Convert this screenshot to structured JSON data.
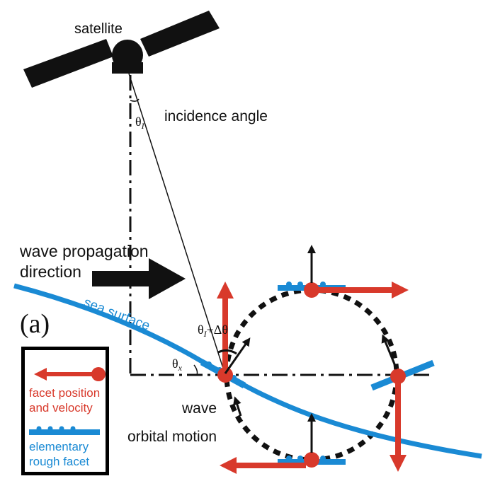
{
  "labels": {
    "satellite": "satellite",
    "incidence_angle": "incidence angle",
    "theta_i": "θ",
    "theta_i_sub": "I",
    "wave_propagation_line1": "wave propagation",
    "wave_propagation_line2": "direction",
    "panel": "(a)",
    "sea_surface": "sea surface",
    "theta_i_delta_a": "θ",
    "theta_i_delta_sub": "I",
    "theta_i_delta_b": "+Δθ",
    "theta_x": "θ",
    "theta_x_sub": "x",
    "wave_orbital_line1": "wave",
    "wave_orbital_line2": "orbital motion"
  },
  "legend": {
    "facet_line1": "facet position",
    "facet_line2": "and velocity",
    "rough_line1": "elementary",
    "rough_line2": "rough facet"
  },
  "colors": {
    "sea_blue": "#1a8ad4",
    "velocity_red": "#d8392b",
    "ink": "#111111"
  }
}
